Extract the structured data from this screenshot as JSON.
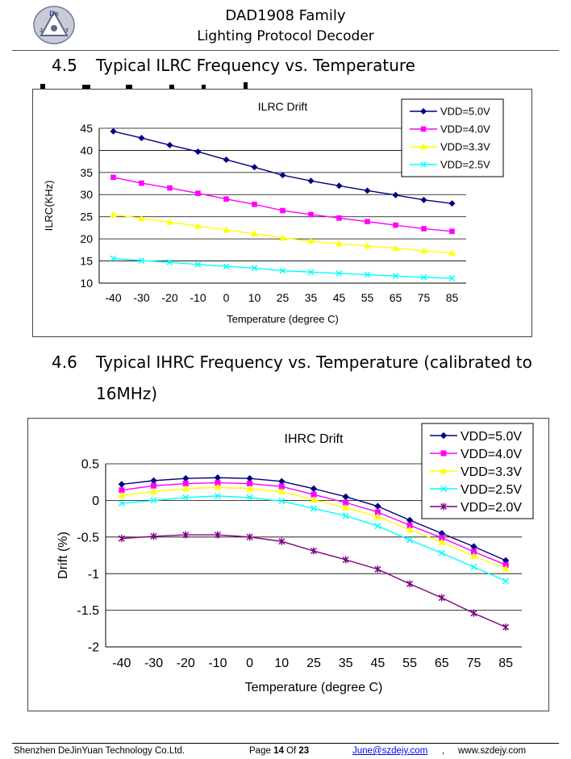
{
  "header": {
    "title": "DAD1908 Family",
    "subtitle": "Lighting Protocol Decoder",
    "logo_letters": [
      "De",
      "J",
      "Y"
    ]
  },
  "sections": [
    {
      "number": "4.5",
      "title": "Typical ILRC Frequency vs. Temperature"
    },
    {
      "number": "4.6",
      "title": "Typical IHRC Frequency vs. Temperature (calibrated to",
      "title_cont": "16MHz)"
    }
  ],
  "chart_data": [
    {
      "type": "line",
      "title": "ILRC Drift",
      "xlabel": "Temperature (degree C)",
      "ylabel": "ILRC(KHz)",
      "ylim": [
        10,
        45
      ],
      "yticks": [
        10,
        15,
        20,
        25,
        30,
        35,
        40,
        45
      ],
      "grid": true,
      "legend": "top-right",
      "categories": [
        "-40",
        "-30",
        "-20",
        "-10",
        "0",
        "10",
        "25",
        "35",
        "45",
        "55",
        "65",
        "75",
        "85"
      ],
      "series": [
        {
          "name": "VDD=5.0V",
          "color": "#000080",
          "marker": "diamond",
          "values": [
            44.3,
            42.8,
            41.2,
            39.7,
            37.9,
            36.2,
            34.4,
            33.1,
            32.0,
            30.9,
            29.9,
            28.8,
            28.0
          ]
        },
        {
          "name": "VDD=4.0V",
          "color": "#ff00ff",
          "marker": "square",
          "values": [
            33.9,
            32.6,
            31.5,
            30.3,
            29.0,
            27.8,
            26.4,
            25.5,
            24.7,
            23.9,
            23.1,
            22.3,
            21.7
          ]
        },
        {
          "name": "VDD=3.3V",
          "color": "#ffff00",
          "marker": "triangle",
          "values": [
            25.5,
            24.6,
            23.8,
            22.9,
            22.0,
            21.2,
            20.2,
            19.5,
            18.9,
            18.4,
            17.9,
            17.3,
            16.8
          ]
        },
        {
          "name": "VDD=2.5V",
          "color": "#00ffff",
          "marker": "x",
          "values": [
            15.6,
            15.1,
            14.7,
            14.2,
            13.8,
            13.4,
            12.8,
            12.5,
            12.2,
            11.9,
            11.6,
            11.3,
            11.1
          ]
        }
      ]
    },
    {
      "type": "line",
      "title": "IHRC Drift",
      "xlabel": "Temperature (degree C)",
      "ylabel": "Drift (%)",
      "ylim": [
        -2,
        0.5
      ],
      "yticks": [
        -2,
        -1.5,
        -1,
        -0.5,
        0,
        0.5
      ],
      "grid": true,
      "legend": "top-right",
      "categories": [
        "-40",
        "-30",
        "-20",
        "-10",
        "0",
        "10",
        "25",
        "35",
        "45",
        "55",
        "65",
        "75",
        "85"
      ],
      "series": [
        {
          "name": "VDD=5.0V",
          "color": "#000080",
          "marker": "diamond",
          "values": [
            0.22,
            0.27,
            0.3,
            0.31,
            0.3,
            0.26,
            0.16,
            0.05,
            -0.08,
            -0.27,
            -0.45,
            -0.63,
            -0.82
          ]
        },
        {
          "name": "VDD=4.0V",
          "color": "#ff00ff",
          "marker": "square",
          "values": [
            0.14,
            0.2,
            0.23,
            0.24,
            0.23,
            0.19,
            0.08,
            -0.03,
            -0.16,
            -0.34,
            -0.51,
            -0.7,
            -0.88
          ]
        },
        {
          "name": "VDD=3.3V",
          "color": "#ffff00",
          "marker": "triangle",
          "values": [
            0.07,
            0.12,
            0.16,
            0.18,
            0.16,
            0.12,
            0.01,
            -0.1,
            -0.22,
            -0.4,
            -0.57,
            -0.76,
            -0.93
          ]
        },
        {
          "name": "VDD=2.5V",
          "color": "#00ffff",
          "marker": "x",
          "values": [
            -0.04,
            0.0,
            0.04,
            0.06,
            0.04,
            -0.01,
            -0.11,
            -0.21,
            -0.35,
            -0.54,
            -0.72,
            -0.91,
            -1.1
          ]
        },
        {
          "name": "VDD=2.0V",
          "color": "#800080",
          "marker": "star",
          "values": [
            -0.52,
            -0.49,
            -0.47,
            -0.47,
            -0.5,
            -0.56,
            -0.69,
            -0.81,
            -0.94,
            -1.14,
            -1.33,
            -1.54,
            -1.73
          ]
        }
      ]
    }
  ],
  "footer": {
    "company": "Shenzhen DeJinYuan Technology Co.Ltd.",
    "page_word": "Page",
    "page_num": "14",
    "of_word": "Of",
    "page_total": "23",
    "email": "June@szdejy.com",
    "comma": ",",
    "website": "www.szdejy.com"
  }
}
